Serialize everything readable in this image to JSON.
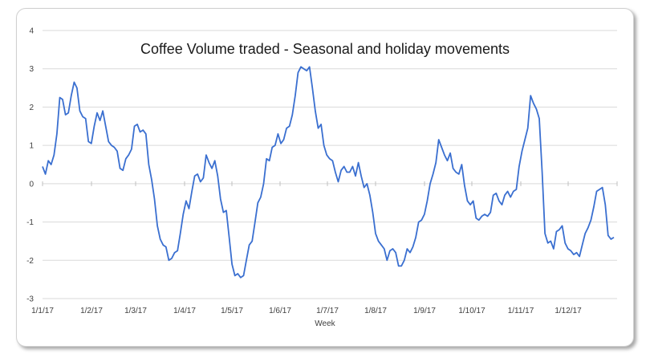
{
  "chart_data": {
    "type": "line",
    "title": "Coffee Volume traded - Seasonal and holiday movements",
    "xlabel": "Week",
    "ylabel": "",
    "ylim": [
      -3,
      4
    ],
    "yticks": [
      4,
      3,
      2,
      1,
      0,
      -1,
      -2,
      -3
    ],
    "grid": true,
    "legend": "none",
    "x_tick_labels": [
      "1/1/17",
      "1/2/17",
      "1/3/17",
      "1/4/17",
      "1/5/17",
      "1/6/17",
      "1/7/17",
      "1/8/17",
      "1/9/17",
      "1/10/17",
      "1/11/17",
      "1/12/17"
    ],
    "line_color": "#3a6fd0",
    "series": [
      {
        "name": "Volume",
        "values": [
          0.45,
          0.25,
          0.6,
          0.5,
          0.75,
          1.3,
          2.25,
          2.2,
          1.8,
          1.85,
          2.3,
          2.65,
          2.5,
          1.9,
          1.75,
          1.7,
          1.1,
          1.05,
          1.5,
          1.85,
          1.65,
          1.9,
          1.5,
          1.1,
          1.0,
          0.95,
          0.85,
          0.4,
          0.35,
          0.65,
          0.75,
          0.9,
          1.5,
          1.55,
          1.35,
          1.4,
          1.3,
          0.5,
          0.1,
          -0.4,
          -1.1,
          -1.45,
          -1.6,
          -1.65,
          -2.0,
          -1.95,
          -1.8,
          -1.75,
          -1.3,
          -0.8,
          -0.45,
          -0.65,
          -0.2,
          0.2,
          0.25,
          0.05,
          0.15,
          0.75,
          0.55,
          0.4,
          0.6,
          0.2,
          -0.4,
          -0.75,
          -0.7,
          -1.4,
          -2.1,
          -2.4,
          -2.35,
          -2.45,
          -2.4,
          -2.0,
          -1.6,
          -1.5,
          -1.0,
          -0.5,
          -0.35,
          0.0,
          0.65,
          0.6,
          0.95,
          1.0,
          1.3,
          1.05,
          1.15,
          1.45,
          1.5,
          1.8,
          2.3,
          2.9,
          3.05,
          3.0,
          2.95,
          3.05,
          2.5,
          1.9,
          1.45,
          1.55,
          1.0,
          0.75,
          0.65,
          0.6,
          0.3,
          0.05,
          0.35,
          0.45,
          0.3,
          0.3,
          0.45,
          0.2,
          0.55,
          0.2,
          -0.1,
          0.0,
          -0.3,
          -0.75,
          -1.3,
          -1.5,
          -1.6,
          -1.7,
          -2.0,
          -1.75,
          -1.7,
          -1.8,
          -2.15,
          -2.15,
          -2.0,
          -1.7,
          -1.8,
          -1.65,
          -1.4,
          -1.0,
          -0.95,
          -0.8,
          -0.45,
          0.0,
          0.25,
          0.55,
          1.15,
          0.95,
          0.75,
          0.6,
          0.8,
          0.4,
          0.3,
          0.25,
          0.5,
          -0.05,
          -0.45,
          -0.55,
          -0.45,
          -0.9,
          -0.95,
          -0.85,
          -0.8,
          -0.85,
          -0.75,
          -0.3,
          -0.25,
          -0.45,
          -0.55,
          -0.3,
          -0.2,
          -0.35,
          -0.2,
          -0.15,
          0.45,
          0.85,
          1.15,
          1.45,
          2.3,
          2.1,
          1.95,
          1.7,
          0.3,
          -1.3,
          -1.55,
          -1.5,
          -1.7,
          -1.25,
          -1.2,
          -1.1,
          -1.55,
          -1.7,
          -1.75,
          -1.85,
          -1.8,
          -1.9,
          -1.6,
          -1.3,
          -1.15,
          -0.95,
          -0.6,
          -0.2,
          -0.15,
          -0.1,
          -0.55,
          -1.35,
          -1.45,
          -1.4
        ]
      }
    ]
  }
}
